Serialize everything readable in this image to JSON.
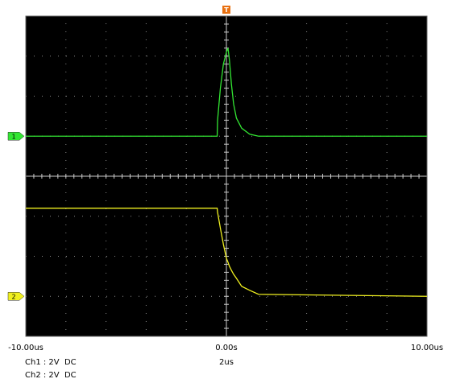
{
  "chart_data": {
    "type": "line",
    "x": [
      -10,
      -0.46,
      -0.44,
      -0.3,
      -0.15,
      0,
      0.08,
      0.15,
      0.25,
      0.36,
      0.5,
      0.76,
      1.16,
      1.6,
      10
    ],
    "xlim": [
      -10,
      10
    ],
    "xticks": [
      {
        "value": -10,
        "label": "-10.00us"
      },
      {
        "value": 0,
        "label": "0.00s"
      },
      {
        "value": 10,
        "label": "10.00us"
      }
    ],
    "ylim": [
      -8,
      8
    ],
    "grid_divisions": [
      10,
      8
    ],
    "series": [
      {
        "name": "1",
        "color": "#33e633",
        "ground": 2,
        "values": [
          0,
          0,
          0.8,
          2.4,
          3.6,
          4.2,
          4.4,
          3.8,
          2.6,
          1.6,
          0.9,
          0.4,
          0.1,
          0,
          0
        ]
      },
      {
        "name": "2",
        "color": "#f0f020",
        "ground": -6,
        "values": [
          4.4,
          4.4,
          4.2,
          3.4,
          2.6,
          1.9,
          1.7,
          1.5,
          1.3,
          1.1,
          0.9,
          0.5,
          0.3,
          0.1,
          0
        ]
      }
    ],
    "channel_labels": [
      "Ch1 : 2V  DC",
      "Ch2 : 2V  DC"
    ],
    "timebase": "2us",
    "trigger": "T"
  }
}
